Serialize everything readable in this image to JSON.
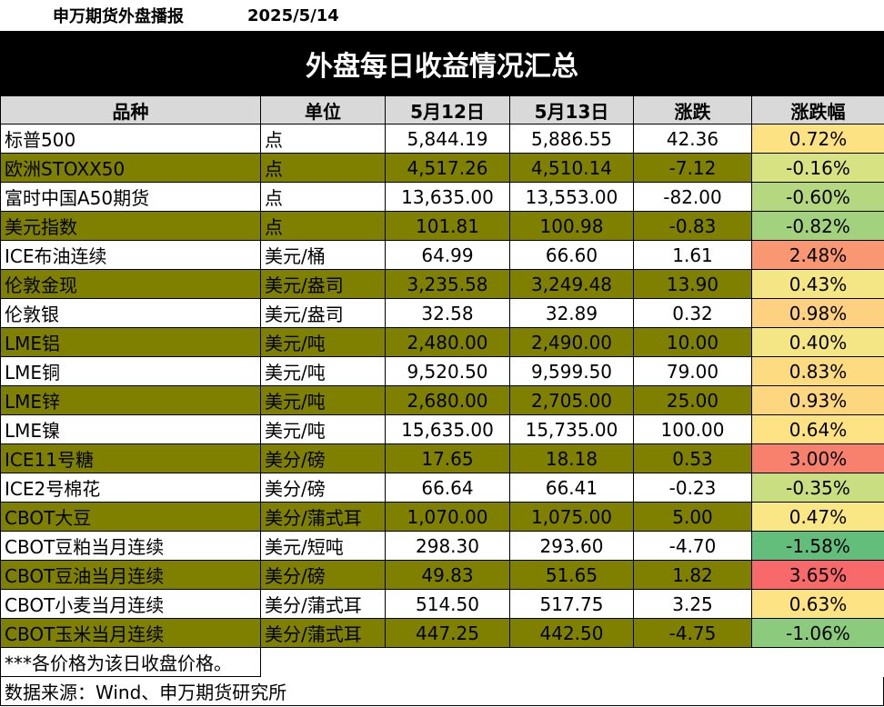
{
  "header": {
    "org": "申万期货外盘播报",
    "date": "2025/5/14"
  },
  "title": "外盘每日收益情况汇总",
  "columns": [
    "品种",
    "单位",
    "5月12日",
    "5月13日",
    "涨跌",
    "涨跌幅"
  ],
  "rows": [
    {
      "name": "标普500",
      "unit": "点",
      "d1": "5,844.19",
      "d2": "5,886.55",
      "chg": "42.36",
      "pct": "0.72%",
      "pct_color": "#fde283"
    },
    {
      "name": "欧洲STOXX50",
      "unit": "点",
      "d1": "4,517.26",
      "d2": "4,510.14",
      "chg": "-7.12",
      "pct": "-0.16%",
      "pct_color": "#d7e282"
    },
    {
      "name": "富时中国A50期货",
      "unit": "点",
      "d1": "13,635.00",
      "d2": "13,553.00",
      "chg": "-82.00",
      "pct": "-0.60%",
      "pct_color": "#b5d780"
    },
    {
      "name": "美元指数",
      "unit": "点",
      "d1": "101.81",
      "d2": "100.98",
      "chg": "-0.83",
      "pct": "-0.82%",
      "pct_color": "#a3d27e"
    },
    {
      "name": "ICE布油连续",
      "unit": "美元/桶",
      "d1": "64.99",
      "d2": "66.60",
      "chg": "1.61",
      "pct": "2.48%",
      "pct_color": "#fa9773"
    },
    {
      "name": "伦敦金现",
      "unit": "美元/盎司",
      "d1": "3,235.58",
      "d2": "3,249.48",
      "chg": "13.90",
      "pct": "0.43%",
      "pct_color": "#f5e685"
    },
    {
      "name": "伦敦银",
      "unit": "美元/盎司",
      "d1": "32.58",
      "d2": "32.89",
      "chg": "0.32",
      "pct": "0.98%",
      "pct_color": "#fdd17f"
    },
    {
      "name": "LME铝",
      "unit": "美元/吨",
      "d1": "2,480.00",
      "d2": "2,490.00",
      "chg": "10.00",
      "pct": "0.40%",
      "pct_color": "#f5e685"
    },
    {
      "name": "LME铜",
      "unit": "美元/吨",
      "d1": "9,520.50",
      "d2": "9,599.50",
      "chg": "79.00",
      "pct": "0.83%",
      "pct_color": "#fddb81"
    },
    {
      "name": "LME锌",
      "unit": "美元/吨",
      "d1": "2,680.00",
      "d2": "2,705.00",
      "chg": "25.00",
      "pct": "0.93%",
      "pct_color": "#fdd680"
    },
    {
      "name": "LME镍",
      "unit": "美元/吨",
      "d1": "15,635.00",
      "d2": "15,735.00",
      "chg": "100.00",
      "pct": "0.64%",
      "pct_color": "#fde383"
    },
    {
      "name": "ICE11号糖",
      "unit": "美分/磅",
      "d1": "17.65",
      "d2": "18.18",
      "chg": "0.53",
      "pct": "3.00%",
      "pct_color": "#f8816e"
    },
    {
      "name": "ICE2号棉花",
      "unit": "美分/磅",
      "d1": "66.64",
      "d2": "66.41",
      "chg": "-0.23",
      "pct": "-0.35%",
      "pct_color": "#c9de81"
    },
    {
      "name": "CBOT大豆",
      "unit": "美分/蒲式耳",
      "d1": "1,070.00",
      "d2": "1,075.00",
      "chg": "5.00",
      "pct": "0.47%",
      "pct_color": "#f9e684"
    },
    {
      "name": "CBOT豆粕当月连续",
      "unit": "美元/短吨",
      "d1": "298.30",
      "d2": "293.60",
      "chg": "-4.70",
      "pct": "-1.58%",
      "pct_color": "#63be7b"
    },
    {
      "name": "CBOT豆油当月连续",
      "unit": "美分/磅",
      "d1": "49.83",
      "d2": "51.65",
      "chg": "1.82",
      "pct": "3.65%",
      "pct_color": "#f8696b"
    },
    {
      "name": "CBOT小麦当月连续",
      "unit": "美分/蒲式耳",
      "d1": "514.50",
      "d2": "517.75",
      "chg": "3.25",
      "pct": "0.63%",
      "pct_color": "#fde383"
    },
    {
      "name": "CBOT玉米当月连续",
      "unit": "美分/蒲式耳",
      "d1": "447.25",
      "d2": "442.50",
      "chg": "-4.75",
      "pct": "-1.06%",
      "pct_color": "#8ccb7d"
    }
  ],
  "note": "***各价格为该日收盘价格。",
  "source": "数据来源：Wind、申万期货研究所",
  "colors": {
    "banner_bg": "#000000",
    "header_bg": "#d9d9d9",
    "olive_row": "#808000"
  }
}
